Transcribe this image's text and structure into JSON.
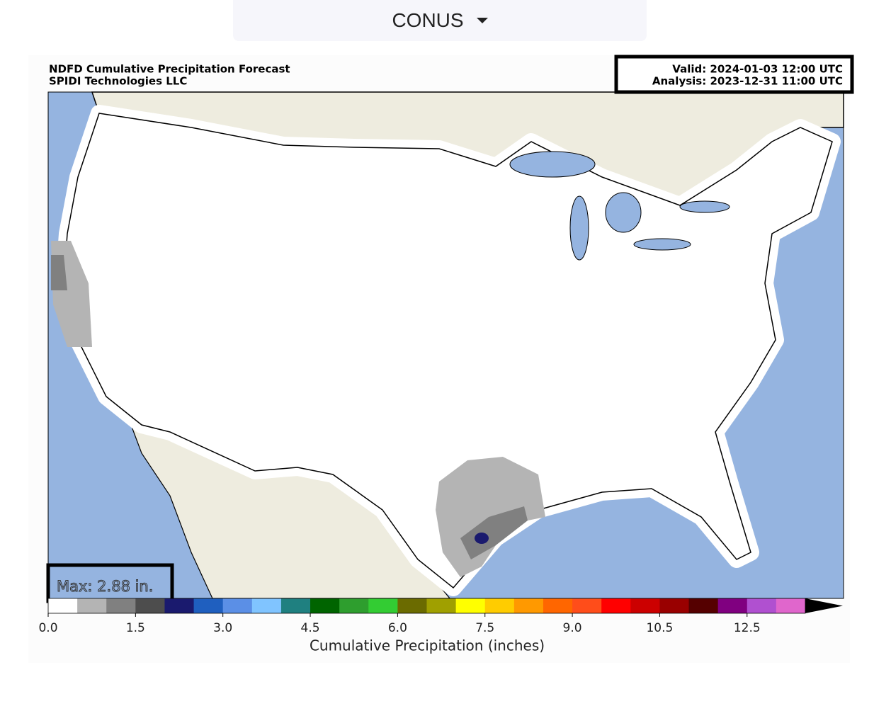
{
  "dropdown": {
    "label": "CONUS"
  },
  "map": {
    "title": [
      "NDFD Cumulative Precipitation Forecast",
      "SPIDI Technologies LLC"
    ],
    "valid": "Valid: 2024-01-03 12:00 UTC",
    "analysis": "Analysis: 2023-12-31 11:00 UTC",
    "max": "Max: 2.88 in."
  },
  "chart_data": {
    "type": "colorbar",
    "label": "Cumulative Precipitation (inches)",
    "boundaries": [
      0,
      0.5,
      1,
      1.5,
      2,
      2.5,
      3,
      3.5,
      4,
      4.5,
      5,
      5.5,
      6,
      6.5,
      7,
      7.5,
      8,
      8.5,
      9,
      9.5,
      10,
      10.5,
      11,
      12,
      12.5,
      13,
      14
    ],
    "colors": [
      "#ffffff",
      "#b4b4b4",
      "#808080",
      "#4d4d4d",
      "#1a1a6e",
      "#1f5fbf",
      "#5b8fe6",
      "#80c4ff",
      "#1f8080",
      "#006400",
      "#2e9e2e",
      "#33cc33",
      "#6b6b00",
      "#a0a000",
      "#ffff00",
      "#ffcc00",
      "#ff9900",
      "#ff6600",
      "#ff4d1a",
      "#ff0000",
      "#cc0000",
      "#990000",
      "#550000",
      "#800080",
      "#b050d0",
      "#e066cc"
    ],
    "over_color": "#000000",
    "xticks": [
      {
        "value": 0,
        "label": "0.0"
      },
      1.5,
      {
        "value": 3,
        "label": "3.0"
      },
      4.5,
      {
        "value": 6,
        "label": "6.0"
      },
      7.5,
      {
        "value": 9,
        "label": "9.0"
      },
      10.5,
      12.5
    ]
  }
}
